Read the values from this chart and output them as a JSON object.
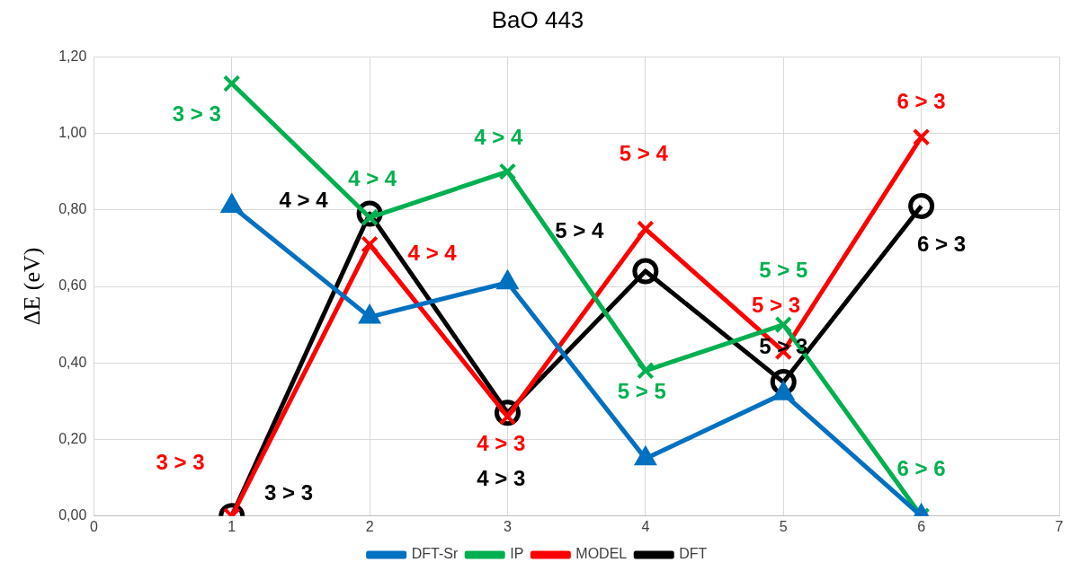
{
  "chart_data": {
    "type": "line",
    "title": "BaO 443",
    "ylabel": "ΔE (eV)",
    "x": [
      1,
      2,
      3,
      4,
      5,
      6
    ],
    "xlim": [
      0,
      7
    ],
    "xticks": [
      0,
      1,
      2,
      3,
      4,
      5,
      6,
      7
    ],
    "ylim": [
      0,
      1.2
    ],
    "yticks": [
      {
        "value": 0,
        "label": "0,00"
      },
      {
        "value": 0.2,
        "label": "0,20"
      },
      {
        "value": 0.4,
        "label": "0,40"
      },
      {
        "value": 0.6,
        "label": "0,60"
      },
      {
        "value": 0.8,
        "label": "0,80"
      },
      {
        "value": 1.0,
        "label": "1,00"
      },
      {
        "value": 1.2,
        "label": "1,20"
      }
    ],
    "grid": true,
    "legend": "bottom",
    "series": [
      {
        "name": "DFT",
        "color": "#000000",
        "marker": "circle",
        "values": [
          0,
          0.79,
          0.27,
          0.64,
          0.35,
          0.81
        ]
      },
      {
        "name": "MODEL",
        "color": "#ff0000",
        "marker": "cross",
        "values": [
          0,
          0.71,
          0.26,
          0.75,
          0.43,
          0.99
        ]
      },
      {
        "name": "IP",
        "color": "#00b050",
        "marker": "cross",
        "values": [
          1.13,
          0.78,
          0.9,
          0.38,
          0.5,
          0
        ]
      },
      {
        "name": "DFT-Sr",
        "color": "#0070c0",
        "marker": "triangle",
        "values": [
          0.81,
          0.52,
          0.61,
          0.15,
          0.32,
          0
        ]
      }
    ],
    "annotations": [
      {
        "text": "3 > 3",
        "x": 1,
        "y": 1.13
      },
      {
        "text": "4 > 4",
        "x": 2,
        "y": 0.79
      },
      {
        "text": "4 > 4",
        "x": 2,
        "y": 0.71
      },
      {
        "text": "4 > 4",
        "x": 2,
        "y": 0.78
      },
      {
        "text": "4 > 4",
        "x": 3,
        "y": 0.9
      },
      {
        "text": "5 > 4",
        "x": 4,
        "y": 0.75
      },
      {
        "text": "5 > 4",
        "x": 4,
        "y": 0.64
      },
      {
        "text": "5 > 5",
        "x": 5,
        "y": 0.5
      },
      {
        "text": "5 > 3",
        "x": 5,
        "y": 0.43
      },
      {
        "text": "5 > 3",
        "x": 5,
        "y": 0.35
      },
      {
        "text": "6 > 3",
        "x": 6,
        "y": 0.99
      },
      {
        "text": "6 > 3",
        "x": 6,
        "y": 0.81
      },
      {
        "text": "3 > 3",
        "x": 1,
        "y": 0
      },
      {
        "text": "3 > 3",
        "x": 1,
        "y": 0
      },
      {
        "text": "4 > 3",
        "x": 3,
        "y": 0.26
      },
      {
        "text": "4 > 3",
        "x": 3,
        "y": 0.27
      },
      {
        "text": "5 > 5",
        "x": 4,
        "y": 0.38
      },
      {
        "text": "6 > 6",
        "x": 6,
        "y": 0
      }
    ]
  }
}
